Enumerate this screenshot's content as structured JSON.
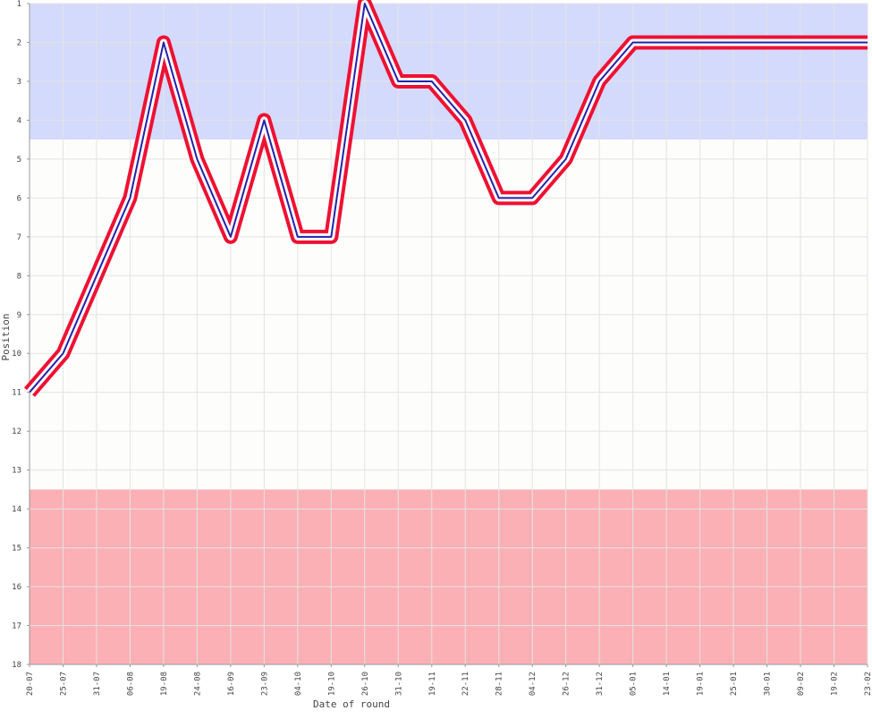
{
  "chart_data": {
    "type": "line",
    "xlabel": "Date of round",
    "ylabel": "Position",
    "y_axis_inverted": true,
    "ylim": [
      1,
      18
    ],
    "yticks": [
      1,
      2,
      3,
      4,
      5,
      6,
      7,
      8,
      9,
      10,
      11,
      12,
      13,
      14,
      15,
      16,
      17,
      18
    ],
    "categories": [
      "20-07",
      "25-07",
      "31-07",
      "06-08",
      "19-08",
      "24-08",
      "16-09",
      "23-09",
      "04-10",
      "19-10",
      "26-10",
      "31-10",
      "19-11",
      "22-11",
      "28-11",
      "04-12",
      "26-12",
      "31-12",
      "05-01",
      "14-01",
      "19-01",
      "25-01",
      "30-01",
      "09-02",
      "19-02",
      "23-02"
    ],
    "series": [
      {
        "values": [
          11,
          10,
          8,
          6,
          2,
          5,
          7,
          4,
          7,
          7,
          1,
          3,
          3,
          4,
          6,
          6,
          5,
          3,
          2,
          2,
          2,
          2,
          2,
          2,
          2,
          2
        ]
      }
    ],
    "zones": [
      {
        "from": 1,
        "to": 4.5,
        "color": "#d4dafc"
      },
      {
        "from": 4.5,
        "to": 13.5,
        "color": "#fdfefb"
      },
      {
        "from": 13.5,
        "to": 18,
        "color": "#fbb0b6"
      }
    ],
    "colors": {
      "line_outer": "#ee1133",
      "line_inner": "#2222aa",
      "grid": "#e3e3e3",
      "axis": "#999999"
    },
    "grid": true
  }
}
